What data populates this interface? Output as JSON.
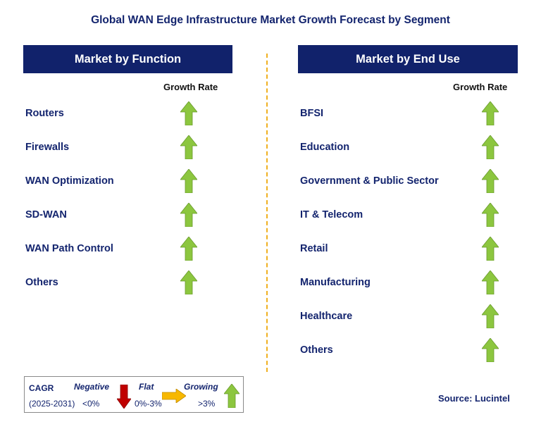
{
  "title": "Global WAN Edge Infrastructure Market Growth Forecast by Segment",
  "left": {
    "header": "Market by Function",
    "growth_rate_label": "Growth Rate",
    "items": [
      {
        "label": "Routers",
        "trend": "growing"
      },
      {
        "label": "Firewalls",
        "trend": "growing"
      },
      {
        "label": "WAN Optimization",
        "trend": "growing"
      },
      {
        "label": "SD-WAN",
        "trend": "growing"
      },
      {
        "label": "WAN Path Control",
        "trend": "growing"
      },
      {
        "label": "Others",
        "trend": "growing"
      }
    ]
  },
  "right": {
    "header": "Market by End Use",
    "growth_rate_label": "Growth Rate",
    "items": [
      {
        "label": "BFSI",
        "trend": "growing"
      },
      {
        "label": "Education",
        "trend": "growing"
      },
      {
        "label": "Government & Public Sector",
        "trend": "growing"
      },
      {
        "label": "IT & Telecom",
        "trend": "growing"
      },
      {
        "label": "Retail",
        "trend": "growing"
      },
      {
        "label": "Manufacturing",
        "trend": "growing"
      },
      {
        "label": "Healthcare",
        "trend": "growing"
      },
      {
        "label": "Others",
        "trend": "growing"
      }
    ]
  },
  "legend": {
    "cagr": "CAGR",
    "period": "(2025-2031)",
    "negative_label": "Negative",
    "negative_range": "<0%",
    "flat_label": "Flat",
    "flat_range": "0%-3%",
    "growing_label": "Growing",
    "growing_range": ">3%"
  },
  "source": "Source: Lucintel",
  "colors": {
    "header_bg": "#11226b",
    "text": "#13246e",
    "growing": "#8cc63f",
    "negative": "#c00000",
    "flat": "#f7b800",
    "divider": "#f0b020"
  }
}
